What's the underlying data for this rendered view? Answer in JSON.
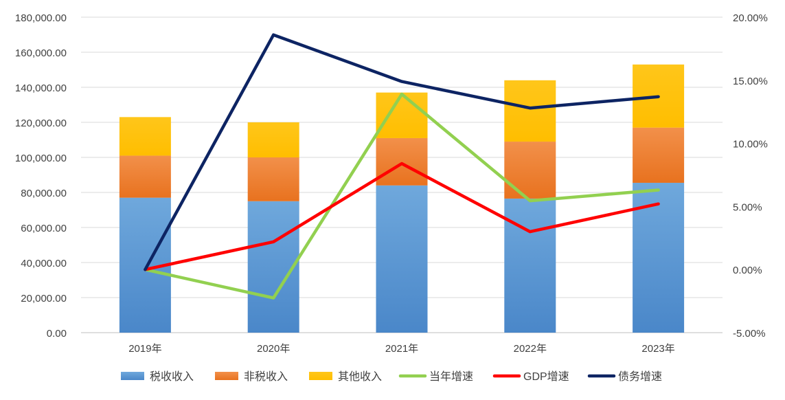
{
  "chart_data": {
    "type": "bar",
    "stacked": true,
    "categories": [
      "2019年",
      "2020年",
      "2021年",
      "2022年",
      "2023年"
    ],
    "series": [
      {
        "name": "税收收入",
        "kind": "bar",
        "axis": "left",
        "color": "#5B9BD5",
        "values": [
          77000,
          75000,
          84000,
          76500,
          85500
        ]
      },
      {
        "name": "非税收入",
        "kind": "bar",
        "axis": "left",
        "color": "#ED7D31",
        "values": [
          24000,
          25000,
          27000,
          32500,
          31500
        ]
      },
      {
        "name": "其他收入",
        "kind": "bar",
        "axis": "left",
        "color": "#FFC000",
        "values": [
          22000,
          20000,
          26000,
          35000,
          36000
        ]
      },
      {
        "name": "当年增速",
        "kind": "line",
        "axis": "right",
        "color": "#92D050",
        "values": [
          0.0,
          -2.25,
          13.9,
          5.45,
          6.3
        ]
      },
      {
        "name": "GDP增速",
        "kind": "line",
        "axis": "right",
        "color": "#FF0000",
        "values": [
          0.0,
          2.2,
          8.4,
          3.0,
          5.2
        ]
      },
      {
        "name": "债务增速",
        "kind": "line",
        "axis": "right",
        "color": "#0D2463",
        "values": [
          0.0,
          18.6,
          14.9,
          12.8,
          13.7
        ]
      }
    ],
    "left_axis": {
      "ylim": [
        0,
        180000
      ],
      "ticks": [
        "0.00",
        "20,000.00",
        "40,000.00",
        "60,000.00",
        "80,000.00",
        "100,000.00",
        "120,000.00",
        "140,000.00",
        "160,000.00",
        "180,000.00"
      ]
    },
    "right_axis": {
      "ylim": [
        -5,
        20
      ],
      "ticks": [
        "-5.00%",
        "0.00%",
        "5.00%",
        "10.00%",
        "15.00%",
        "20.00%"
      ]
    },
    "grid": true,
    "legend_position": "bottom"
  }
}
